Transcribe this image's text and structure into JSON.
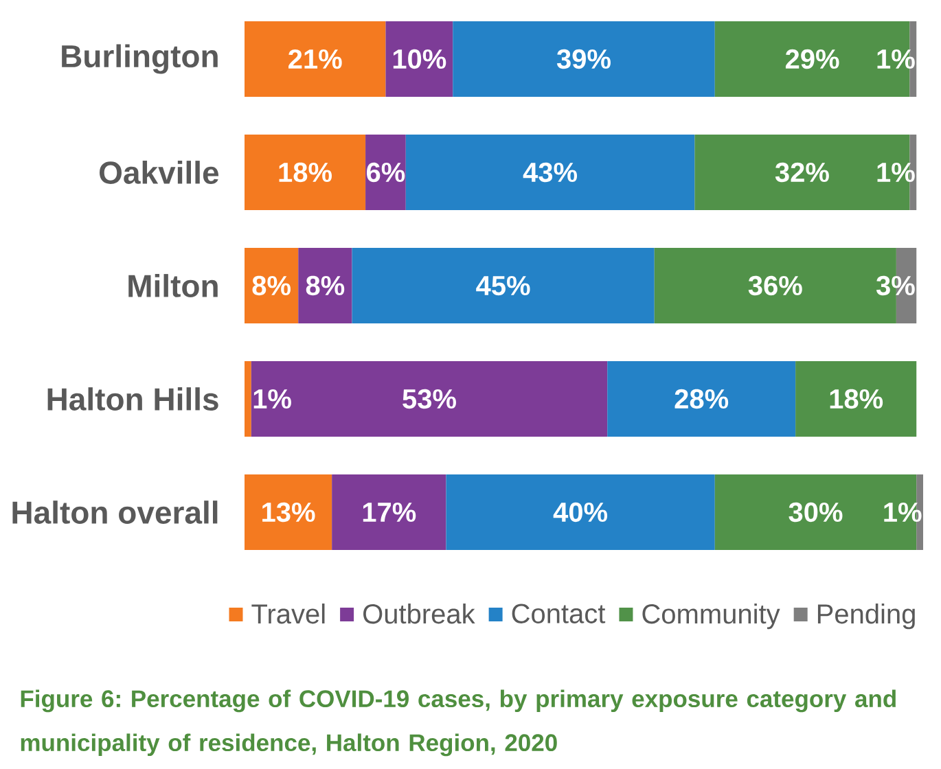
{
  "chart_data": {
    "type": "bar",
    "orientation": "horizontal",
    "stacked": true,
    "title": "Figure 6: Percentage of COVID-19 cases, by primary exposure category and municipality of residence, Halton Region, 2020",
    "categories": [
      "Burlington",
      "Oakville",
      "Milton",
      "Halton Hills",
      "Halton overall"
    ],
    "series": [
      {
        "name": "Travel",
        "color": "#f47a20",
        "values": [
          21,
          18,
          8,
          1,
          13
        ],
        "value_labels": [
          "21%",
          "18%",
          "8%",
          "1%",
          "13%"
        ]
      },
      {
        "name": "Outbreak",
        "color": "#7d3c97",
        "values": [
          10,
          6,
          8,
          53,
          17
        ],
        "value_labels": [
          "10%",
          "6%",
          "8%",
          "53%",
          "17%"
        ]
      },
      {
        "name": "Contact",
        "color": "#2482c7",
        "values": [
          39,
          43,
          45,
          28,
          40
        ],
        "value_labels": [
          "39%",
          "43%",
          "45%",
          "28%",
          "40%"
        ]
      },
      {
        "name": "Community",
        "color": "#519249",
        "values": [
          29,
          32,
          36,
          18,
          30
        ],
        "value_labels": [
          "29%",
          "32%",
          "36%",
          "18%",
          "30%"
        ]
      },
      {
        "name": "Pending",
        "color": "#7f7f7f",
        "values": [
          1,
          1,
          3,
          null,
          1
        ],
        "value_labels": [
          "1%",
          "1%",
          "3%",
          null,
          "1%"
        ]
      }
    ],
    "legend": "bottom"
  }
}
